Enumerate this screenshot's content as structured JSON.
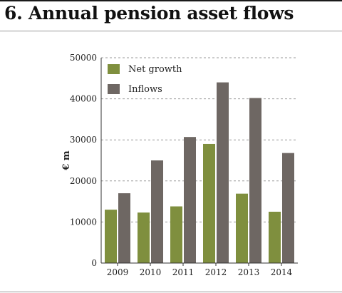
{
  "title": "6. Annual pension asset flows",
  "colors": {
    "net_growth": "#7f8f3e",
    "inflows": "#6e6763",
    "grid": "#9a9a9a",
    "axis": "#333333"
  },
  "chart_data": {
    "type": "bar",
    "title": "6. Annual pension asset flows",
    "ylabel": "€ m",
    "xlabel": "",
    "categories": [
      "2009",
      "2010",
      "2011",
      "2012",
      "2013",
      "2014"
    ],
    "series": [
      {
        "name": "Net growth",
        "values": [
          13000,
          12300,
          13800,
          29000,
          16900,
          12500
        ]
      },
      {
        "name": "Inflows",
        "values": [
          17000,
          25000,
          30700,
          44000,
          40200,
          26800
        ]
      }
    ],
    "ylim": [
      0,
      50000
    ],
    "yticks": [
      0,
      10000,
      20000,
      30000,
      40000,
      50000
    ],
    "ytick_labels": [
      "0",
      "10000",
      "20000",
      "30000",
      "40000",
      "50000"
    ],
    "grid": "dashed horizontal",
    "legend": "top-left"
  }
}
